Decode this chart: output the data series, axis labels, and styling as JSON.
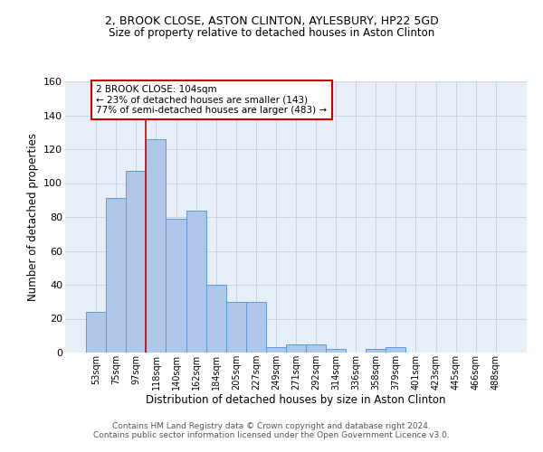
{
  "title1": "2, BROOK CLOSE, ASTON CLINTON, AYLESBURY, HP22 5GD",
  "title2": "Size of property relative to detached houses in Aston Clinton",
  "xlabel": "Distribution of detached houses by size in Aston Clinton",
  "ylabel": "Number of detached properties",
  "categories": [
    "53sqm",
    "75sqm",
    "97sqm",
    "118sqm",
    "140sqm",
    "162sqm",
    "184sqm",
    "205sqm",
    "227sqm",
    "249sqm",
    "271sqm",
    "292sqm",
    "314sqm",
    "336sqm",
    "358sqm",
    "379sqm",
    "401sqm",
    "423sqm",
    "445sqm",
    "466sqm",
    "488sqm"
  ],
  "values": [
    24,
    91,
    107,
    126,
    79,
    84,
    40,
    30,
    30,
    3,
    5,
    5,
    2,
    0,
    2,
    3,
    0,
    0,
    0,
    0,
    0
  ],
  "bar_color": "#aec6e8",
  "bar_edge_color": "#5b9bd5",
  "vline_x_index": 2.5,
  "vline_color": "#cc0000",
  "annotation_text": "2 BROOK CLOSE: 104sqm\n← 23% of detached houses are smaller (143)\n77% of semi-detached houses are larger (483) →",
  "annotation_box_color": "#ffffff",
  "annotation_box_edge": "#cc0000",
  "ylim": [
    0,
    160
  ],
  "yticks": [
    0,
    20,
    40,
    60,
    80,
    100,
    120,
    140,
    160
  ],
  "grid_color": "#c8d4e8",
  "bg_color": "#e8eef8",
  "footer1": "Contains HM Land Registry data © Crown copyright and database right 2024.",
  "footer2": "Contains public sector information licensed under the Open Government Licence v3.0."
}
